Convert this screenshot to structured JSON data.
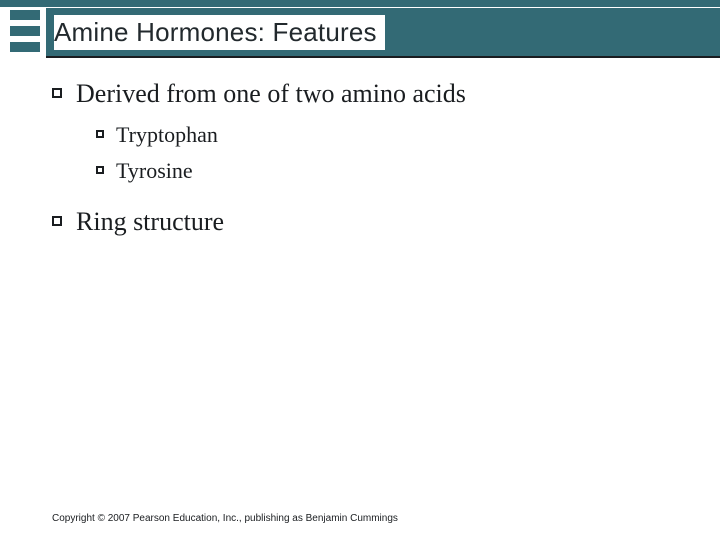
{
  "slide": {
    "title": "Amine Hormones: Features",
    "bullets": [
      {
        "text": "Derived from one of two amino acids",
        "children": [
          {
            "text": "Tryptophan"
          },
          {
            "text": "Tyrosine"
          }
        ]
      },
      {
        "text": "Ring structure",
        "children": []
      }
    ],
    "footer": "Copyright © 2007 Pearson Education, Inc., publishing as Benjamin Cummings"
  },
  "style": {
    "accent_color": "#336a75",
    "text_color": "#1a1d20",
    "background_color": "#ffffff",
    "title_font_family": "Arial",
    "title_font_size_pt": 20,
    "body_font_family": "Times New Roman",
    "l1_font_size_pt": 20,
    "l2_font_size_pt": 17,
    "footer_font_size_pt": 8,
    "bullet_shape": "hollow-square"
  }
}
